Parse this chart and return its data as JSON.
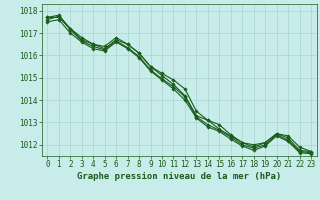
{
  "title": "Graphe pression niveau de la mer (hPa)",
  "bg_color": "#c8ecea",
  "grid_color": "#aad4d0",
  "line_color": "#1a5c1a",
  "x_values": [
    0,
    1,
    2,
    3,
    4,
    5,
    6,
    7,
    8,
    9,
    10,
    11,
    12,
    13,
    14,
    15,
    16,
    17,
    18,
    19,
    20,
    21,
    22,
    23
  ],
  "series": [
    [
      1017.7,
      1017.8,
      1017.2,
      1016.7,
      1016.5,
      1016.3,
      1016.7,
      1016.5,
      1016.1,
      1015.5,
      1015.1,
      1014.7,
      1014.2,
      1013.3,
      1013.1,
      1012.7,
      1012.4,
      1012.1,
      1011.9,
      1012.1,
      1012.5,
      1012.3,
      1011.75,
      1011.7
    ],
    [
      1017.7,
      1017.7,
      1017.2,
      1016.8,
      1016.5,
      1016.4,
      1016.8,
      1016.5,
      1016.1,
      1015.5,
      1015.2,
      1014.9,
      1014.5,
      1013.5,
      1013.1,
      1012.9,
      1012.45,
      1012.1,
      1012.0,
      1012.1,
      1012.5,
      1012.4,
      1011.9,
      1011.7
    ],
    [
      1017.6,
      1017.75,
      1017.15,
      1016.65,
      1016.4,
      1016.25,
      1016.65,
      1016.35,
      1015.95,
      1015.35,
      1014.95,
      1014.6,
      1014.15,
      1013.25,
      1012.9,
      1012.65,
      1012.35,
      1012.0,
      1011.85,
      1012.0,
      1012.45,
      1012.2,
      1011.7,
      1011.65
    ],
    [
      1017.5,
      1017.6,
      1017.0,
      1016.6,
      1016.3,
      1016.2,
      1016.6,
      1016.3,
      1015.9,
      1015.3,
      1014.9,
      1014.5,
      1014.0,
      1013.2,
      1012.8,
      1012.6,
      1012.25,
      1011.95,
      1011.75,
      1011.95,
      1012.4,
      1012.15,
      1011.65,
      1011.6
    ]
  ],
  "ylim": [
    1011.5,
    1018.3
  ],
  "yticks": [
    1012,
    1013,
    1014,
    1015,
    1016,
    1017,
    1018
  ],
  "xlim": [
    -0.5,
    23.5
  ],
  "xticks": [
    0,
    1,
    2,
    3,
    4,
    5,
    6,
    7,
    8,
    9,
    10,
    11,
    12,
    13,
    14,
    15,
    16,
    17,
    18,
    19,
    20,
    21,
    22,
    23
  ],
  "tick_fontsize": 5.5,
  "title_fontsize": 6.5,
  "line_width": 0.8,
  "marker": "D",
  "marker_size": 1.8
}
